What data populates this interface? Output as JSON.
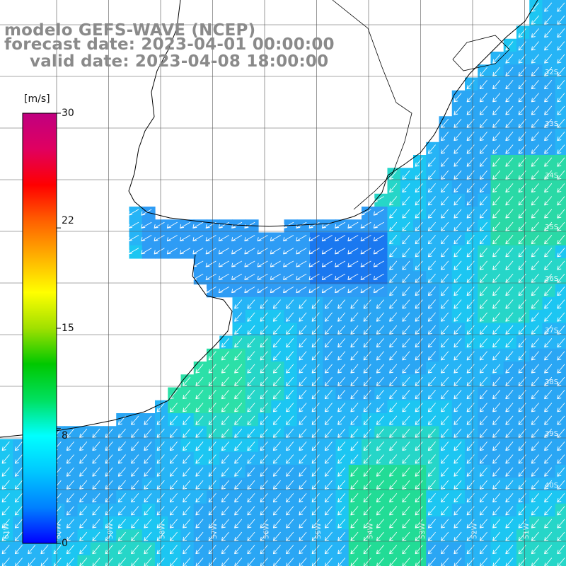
{
  "title": {
    "model": "modelo GEFS-WAVE (NCEP)",
    "forecast": "forecast date: 2023-04-01 00:00:00",
    "valid": "valid date: 2023-04-08 18:00:00"
  },
  "colorbar": {
    "unit": "[m/s]",
    "min": 0,
    "max": 30,
    "ticks": [
      "30",
      "22",
      "15",
      "8",
      "0"
    ],
    "tick_values": [
      30,
      22,
      15,
      8,
      0
    ],
    "colors": [
      "#0000ff",
      "#0080ff",
      "#00c8ff",
      "#00ffff",
      "#00e060",
      "#00c800",
      "#a0e000",
      "#ffff00",
      "#ffb000",
      "#ff6000",
      "#ff0000",
      "#e00060",
      "#c00080"
    ]
  },
  "map": {
    "lat_labels": [
      "32S",
      "33S",
      "34S",
      "35S",
      "36S",
      "37S",
      "38S",
      "39S",
      "40S"
    ],
    "lon_labels": [
      "61W",
      "60W",
      "59W",
      "58W",
      "57W",
      "56W",
      "55W",
      "54W",
      "53W",
      "52W",
      "51W"
    ],
    "wind_direction": "to-southwest",
    "colors": {
      "land": "#ffffff",
      "coast": "#000000",
      "grid": "#555555",
      "arrow": "#ffffff"
    }
  }
}
